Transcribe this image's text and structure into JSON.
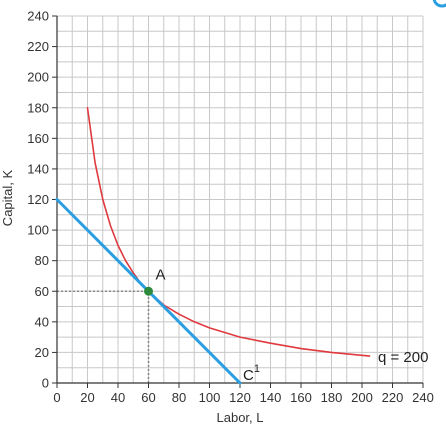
{
  "chart_data": {
    "type": "line",
    "xlabel": "Labor, L",
    "ylabel": "Capital, K",
    "xlim": [
      0,
      240
    ],
    "ylim": [
      0,
      240
    ],
    "x_ticks": [
      "0",
      "20",
      "40",
      "60",
      "80",
      "100",
      "120",
      "140",
      "160",
      "180",
      "200",
      "220",
      "240"
    ],
    "y_ticks": [
      "0",
      "20",
      "40",
      "60",
      "80",
      "100",
      "120",
      "140",
      "160",
      "180",
      "200",
      "220",
      "240"
    ],
    "grid": true,
    "series": [
      {
        "name": "q = 200",
        "kind": "isoquant",
        "color": "#e0393e",
        "x": [
          20,
          25,
          30,
          35,
          40,
          45,
          50,
          55,
          60,
          70,
          80,
          90,
          100,
          120,
          140,
          160,
          180,
          205
        ],
        "y": [
          180,
          144,
          120,
          103,
          90,
          80,
          72,
          65,
          60,
          51,
          45,
          40,
          36,
          30,
          26,
          22.5,
          20,
          17.6
        ]
      },
      {
        "name": "C",
        "superscript": "1",
        "kind": "isocost",
        "color": "#2a9ee0",
        "x": [
          0,
          120
        ],
        "y": [
          120,
          0
        ]
      }
    ],
    "points": [
      {
        "label": "A",
        "x": 60,
        "y": 60,
        "color": "#2e8b3d"
      }
    ],
    "guides": {
      "x": 60,
      "y": 60,
      "style": "dotted"
    }
  },
  "colors": {
    "grid": "#c8c8c8",
    "axis": "#333333",
    "guide": "#8a8a8a",
    "corner_icon": "#2a9ee0"
  }
}
